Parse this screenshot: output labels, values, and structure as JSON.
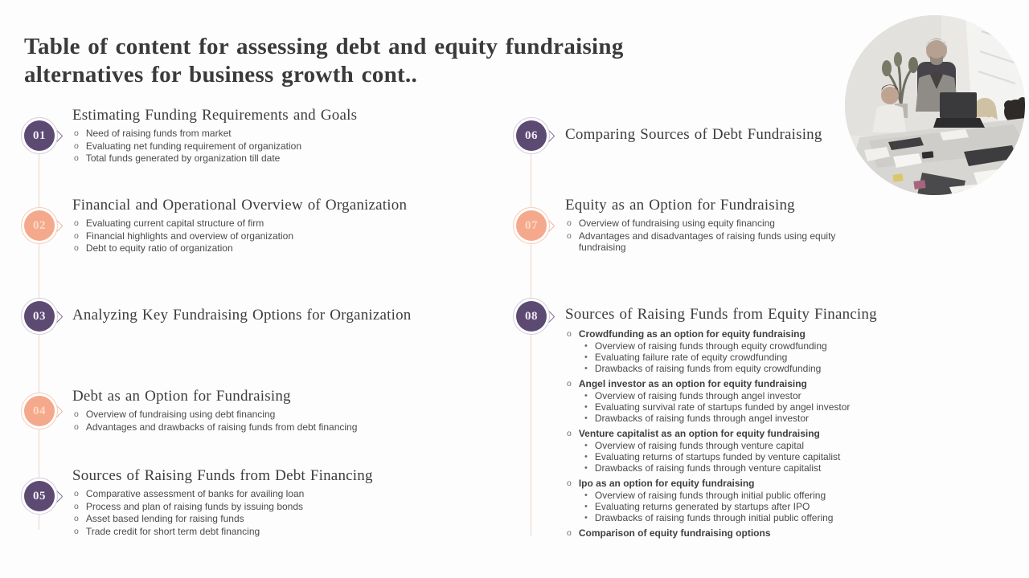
{
  "slide": {
    "title_bold": "Table of content",
    "title_rest": " for assessing debt and equity fundraising alternatives for business growth cont.."
  },
  "colors": {
    "purple_accent": "#5d4a73",
    "orange_accent": "#f5a98c",
    "heading_text": "#3d3d3d",
    "body_text": "#4a4a4a",
    "connector_line": "#ead9c9"
  },
  "photo": {
    "name": "team-meeting-photo"
  },
  "sections": [
    {
      "number": "01",
      "accent": "purple",
      "column": "left",
      "title": "Estimating Funding Requirements and Goals",
      "bullets": [
        {
          "text": "Need of raising funds from market"
        },
        {
          "text": "Evaluating net funding requirement of organization"
        },
        {
          "text": "Total funds generated by organization till date"
        }
      ]
    },
    {
      "number": "02",
      "accent": "orange",
      "column": "left",
      "title": "Financial and Operational Overview of Organization",
      "bullets": [
        {
          "text": "Evaluating current capital structure of firm"
        },
        {
          "text": "Financial highlights and overview of organization"
        },
        {
          "text": "Debt to equity ratio of organization"
        }
      ]
    },
    {
      "number": "03",
      "accent": "purple",
      "column": "left",
      "title": "Analyzing Key Fundraising Options for Organization",
      "bullets": []
    },
    {
      "number": "04",
      "accent": "orange",
      "column": "left",
      "title": "Debt as an Option for Fundraising",
      "bullets": [
        {
          "text": "Overview of fundraising using debt financing"
        },
        {
          "text": "Advantages and drawbacks of raising funds from debt financing"
        }
      ]
    },
    {
      "number": "05",
      "accent": "purple",
      "column": "left",
      "title": "Sources of Raising Funds from Debt Financing",
      "bullets": [
        {
          "text": "Comparative assessment of banks for availing loan"
        },
        {
          "text": "Process and plan of raising funds by issuing bonds"
        },
        {
          "text": "Asset based lending for raising funds"
        },
        {
          "text": "Trade credit for short term debt financing"
        }
      ]
    },
    {
      "number": "06",
      "accent": "purple",
      "column": "right",
      "title": "Comparing Sources of Debt Fundraising",
      "bullets": []
    },
    {
      "number": "07",
      "accent": "orange",
      "column": "right",
      "title": "Equity as an Option for Fundraising",
      "bullets": [
        {
          "text": "Overview of fundraising using equity financing"
        },
        {
          "text": "Advantages and disadvantages of raising funds using equity fundraising"
        }
      ]
    },
    {
      "number": "08",
      "accent": "purple",
      "column": "right",
      "title": "Sources of Raising Funds from Equity Financing",
      "bullets": [
        {
          "text": "Crowdfunding as an option for equity fundraising",
          "bold": true,
          "subs": [
            "Overview of raising funds through equity crowdfunding",
            "Evaluating failure rate of equity crowdfunding",
            "Drawbacks of raising funds from equity crowdfunding"
          ]
        },
        {
          "text": "Angel investor as an option for equity fundraising",
          "bold": true,
          "subs": [
            "Overview of raising funds through angel investor",
            "Evaluating survival rate of startups funded by angel investor",
            "Drawbacks of raising funds through angel investor"
          ]
        },
        {
          "text": "Venture capitalist as an option for equity fundraising",
          "bold": true,
          "subs": [
            "Overview of raising funds through venture capital",
            "Evaluating returns of startups funded by venture capitalist",
            "Drawbacks of raising funds through venture capitalist"
          ]
        },
        {
          "text": "Ipo as an option for equity fundraising",
          "bold": true,
          "subs": [
            "Overview of raising funds through initial public offering",
            "Evaluating returns generated by startups after IPO",
            "Drawbacks of raising funds through initial public offering"
          ]
        },
        {
          "text": "Comparison of equity fundraising options",
          "bold": true,
          "subs": []
        }
      ]
    }
  ]
}
